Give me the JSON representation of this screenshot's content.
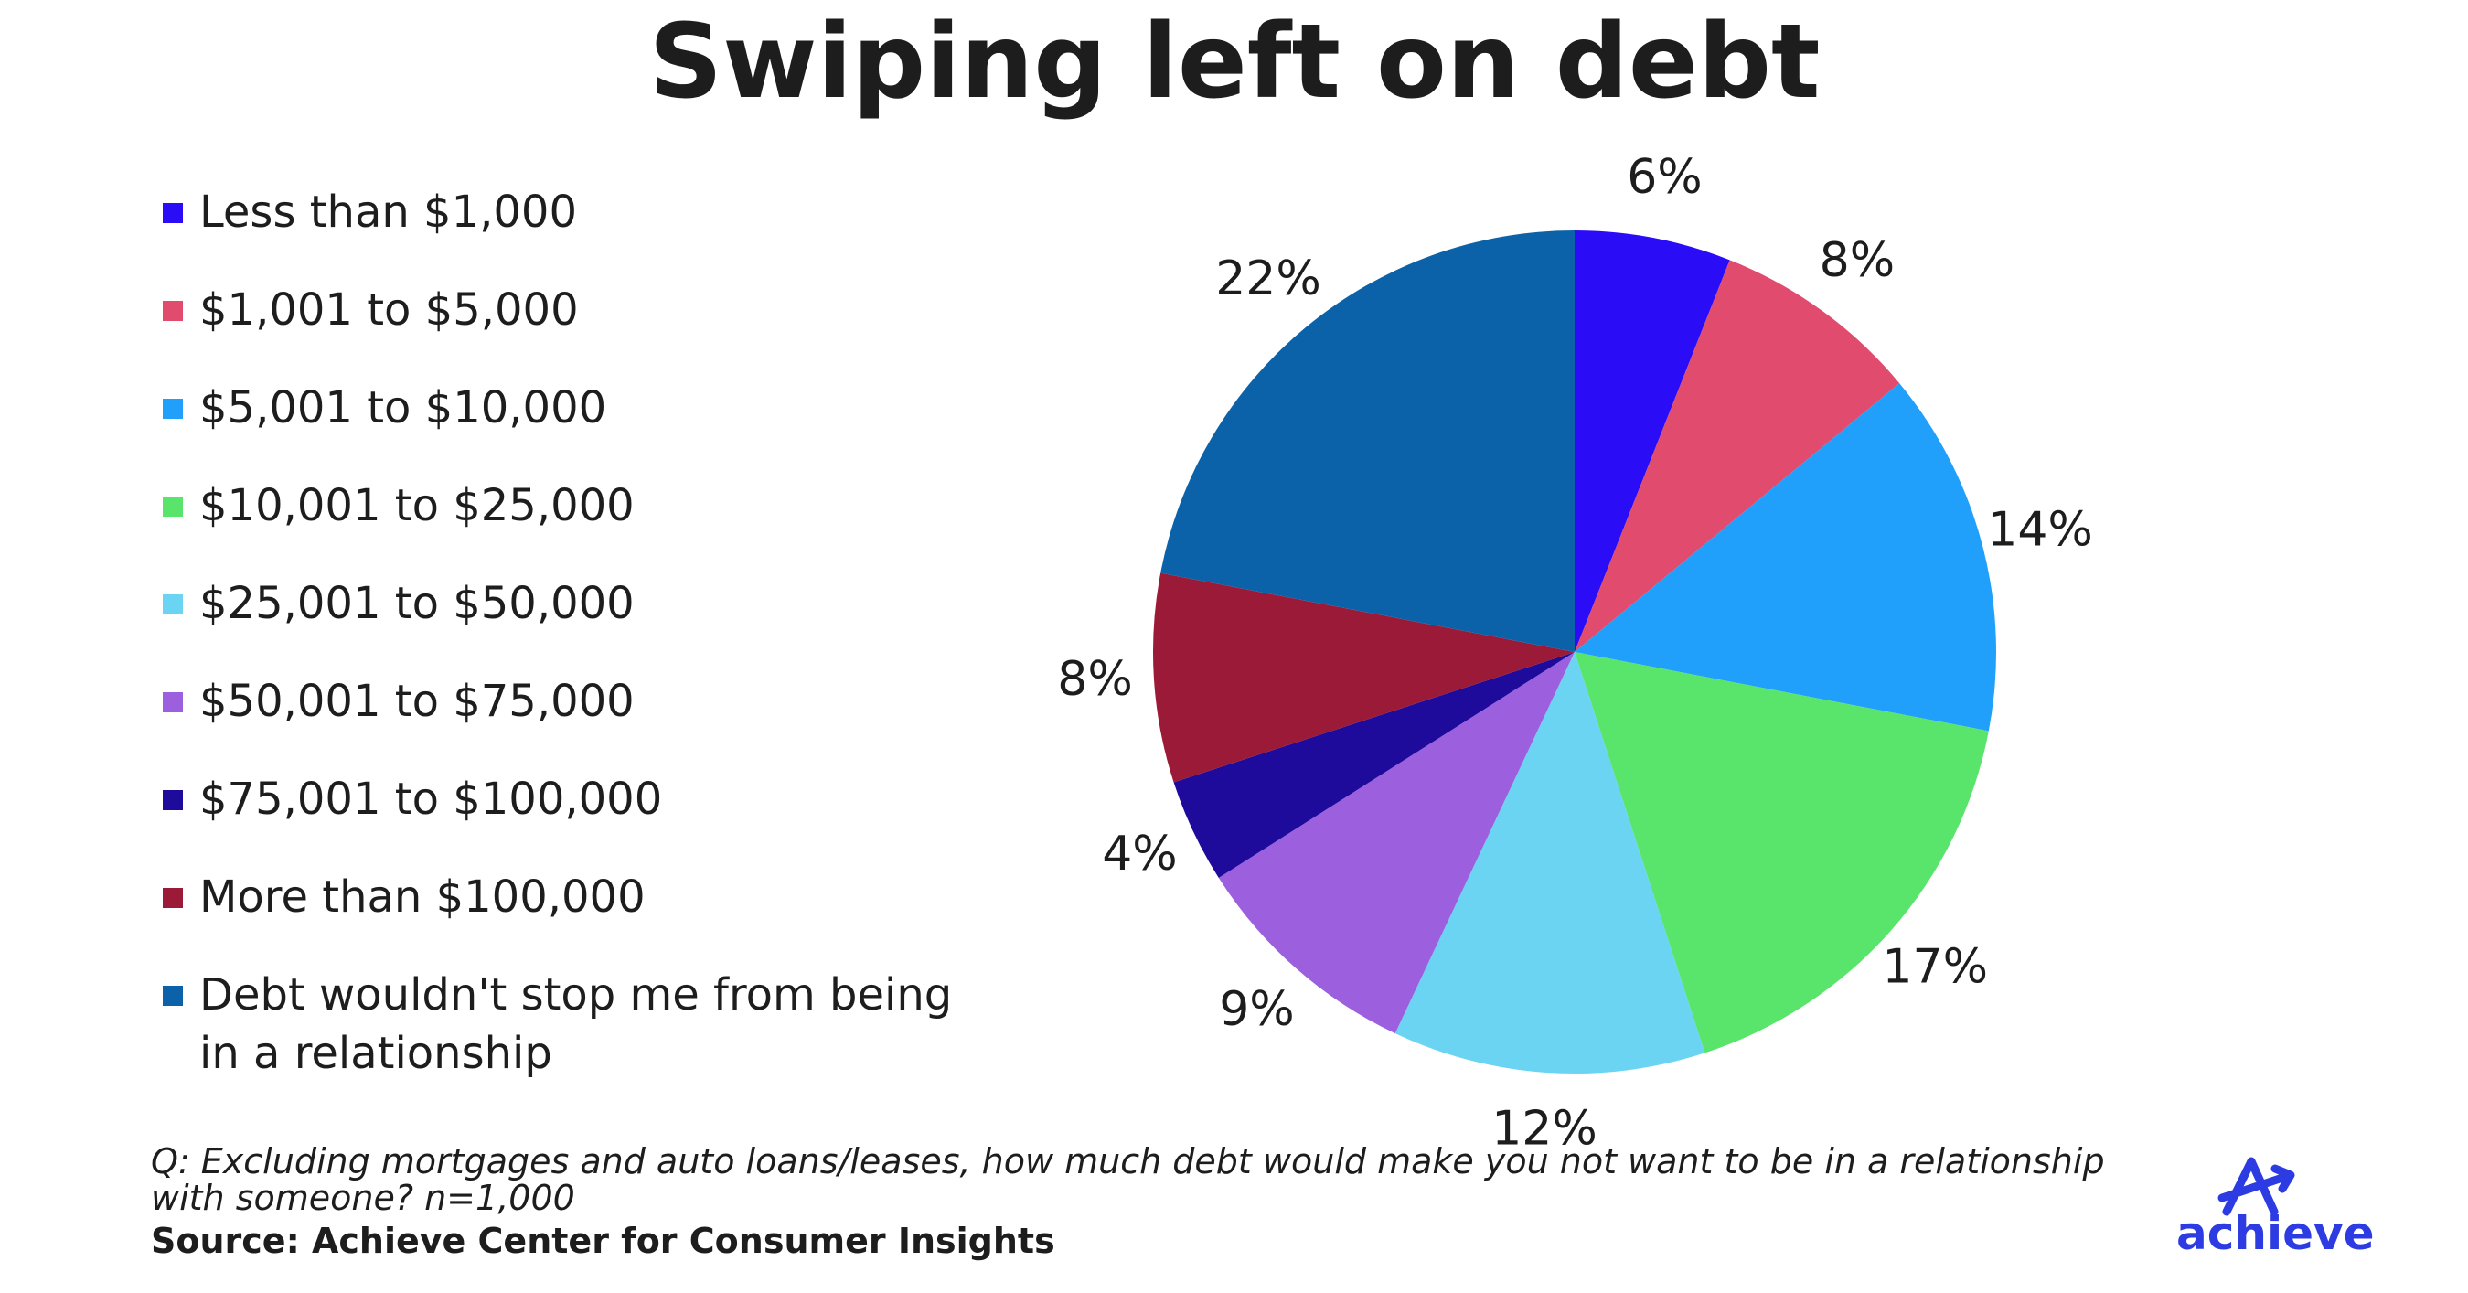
{
  "chart_data": {
    "type": "pie",
    "title": "Swiping left on debt",
    "categories": [
      "Less than $1,000",
      "$1,001 to $5,000",
      "$5,001 to $10,000",
      "$10,001 to $25,000",
      "$25,001 to $50,000",
      "$50,001 to $75,000",
      "$75,001 to $100,000",
      "More than $100,000",
      "Debt wouldn't stop me from being in a relationship"
    ],
    "values": [
      6,
      8,
      14,
      17,
      12,
      9,
      4,
      8,
      22
    ],
    "value_labels": [
      "6%",
      "8%",
      "14%",
      "17%",
      "12%",
      "9%",
      "4%",
      "8%",
      "22%"
    ],
    "colors": [
      "#2a0cf6",
      "#e04b6e",
      "#21a0fb",
      "#59e46b",
      "#6bd4f2",
      "#9c60df",
      "#1e0a9b",
      "#9a1a37",
      "#0b62a9"
    ],
    "legend": "left",
    "note": "Q: Excluding mortgages and auto loans/leases, how much debt would make you not want to be in a relationship with someone? n=1,000",
    "source": "Source: Achieve Center for Consumer Insights",
    "logo": "achieve"
  }
}
